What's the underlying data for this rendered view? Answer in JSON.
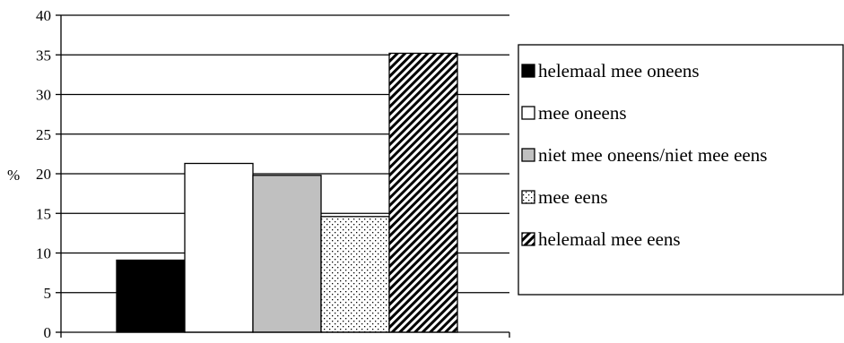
{
  "chart_data": {
    "type": "bar",
    "title": "",
    "xlabel": "",
    "ylabel": "%",
    "ylim": [
      0,
      40
    ],
    "yticks": [
      0,
      5,
      10,
      15,
      20,
      25,
      30,
      35,
      40
    ],
    "grid": true,
    "legend_position": "right",
    "series": [
      {
        "name": "helemaal mee oneens",
        "value": 9.1,
        "fill": "#000000",
        "pattern": "solid"
      },
      {
        "name": "mee oneens",
        "value": 21.3,
        "fill": "#ffffff",
        "pattern": "solid"
      },
      {
        "name": "niet mee oneens/niet mee eens",
        "value": 19.8,
        "fill": "#c0c0c0",
        "pattern": "solid"
      },
      {
        "name": "mee eens",
        "value": 14.6,
        "fill": "#ffffff",
        "pattern": "dots"
      },
      {
        "name": "helemaal mee eens",
        "value": 35.2,
        "fill": "#ffffff",
        "pattern": "diagonal-hatch"
      }
    ]
  }
}
